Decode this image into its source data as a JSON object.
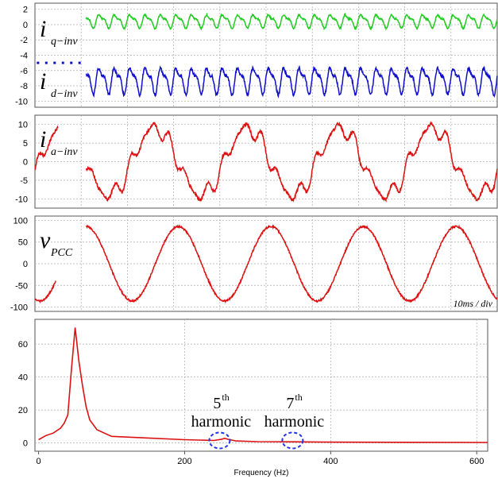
{
  "chart_data": [
    {
      "type": "line",
      "label_main": "i",
      "label_sub": "q−inv",
      "label2_main": "i",
      "label2_sub": "d−inv",
      "yticks": [
        "2",
        "0",
        "-2",
        "-4",
        "-6",
        "-8",
        "-10"
      ],
      "ylim": [
        -10.8,
        2.8
      ],
      "x_range_ms": [
        0,
        100
      ],
      "series": [
        {
          "color": "#22cc22",
          "mean": 0.5,
          "amplitude": 1.3,
          "ripple_freq_hz": 300,
          "x_start_ms": 11
        },
        {
          "color": "#1010cc",
          "mean": -7.2,
          "amplitude": 2.6,
          "ripple_freq_hz": 300,
          "x_start_ms": 11,
          "dotted_until_ms": 11
        }
      ]
    },
    {
      "type": "line",
      "label_main": "i",
      "label_sub": "a−inv",
      "yticks": [
        "10",
        "5",
        "0",
        "-5",
        "-10"
      ],
      "ylim": [
        -12.5,
        12.5
      ],
      "x_range_ms": [
        0,
        100
      ],
      "series": [
        {
          "color": "#dd1111",
          "amplitude": 9,
          "frequency_hz": 50,
          "x_start_ms": 12,
          "gap_ms": [
            5,
            11
          ]
        }
      ]
    },
    {
      "type": "line",
      "label_main": "v",
      "label_sub": "PCC",
      "scale_label": "10ms / div",
      "yticks": [
        "100",
        "50",
        "0",
        "-50",
        "-100"
      ],
      "ylim": [
        -110,
        110
      ],
      "x_range_ms": [
        0,
        100
      ],
      "series": [
        {
          "color": "#dd1111",
          "amplitude": 86,
          "frequency_hz": 50,
          "gap_ms": [
            4.5,
            11
          ]
        }
      ]
    },
    {
      "type": "line",
      "xlabel": "Frequency (Hz)",
      "xticks": [
        "0",
        "200",
        "400",
        "600"
      ],
      "yticks": [
        "60",
        "40",
        "20",
        "0"
      ],
      "xlim": [
        -5,
        615
      ],
      "ylim": [
        -5,
        75
      ],
      "series": [
        {
          "color": "#dd1111",
          "x": [
            0,
            10,
            20,
            30,
            35,
            40,
            45,
            50,
            55,
            60,
            65,
            70,
            80,
            100,
            150,
            200,
            240,
            250,
            255,
            260,
            270,
            300,
            350,
            400,
            500,
            615
          ],
          "y": [
            2,
            4.5,
            6,
            9,
            12,
            17,
            45,
            70,
            50,
            35,
            22,
            14,
            8,
            4,
            3,
            2,
            1.5,
            2.2,
            2.8,
            2.2,
            1.2,
            0.8,
            0.7,
            0.5,
            0.4,
            0.3
          ]
        }
      ],
      "annotations": [
        {
          "number": "5",
          "suffix": "th",
          "word": "harmonic",
          "freq": 250
        },
        {
          "number": "7",
          "suffix": "th",
          "word": "harmonic",
          "freq": 350
        }
      ]
    }
  ]
}
